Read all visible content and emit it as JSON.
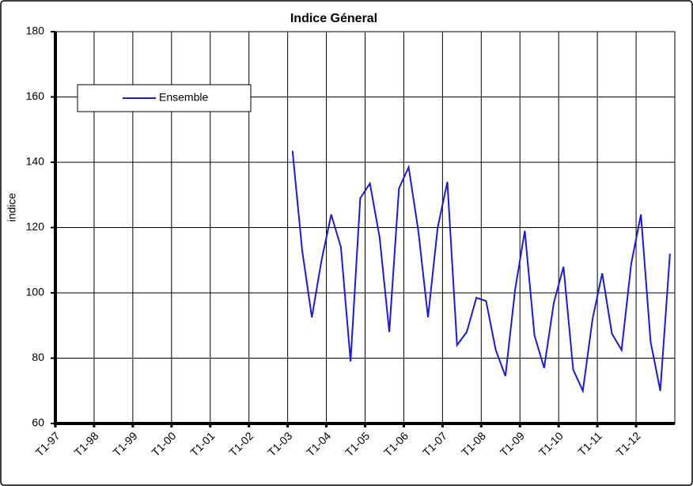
{
  "chart_data": {
    "type": "line",
    "title": "Indice Géneral",
    "y_label": "indice",
    "categories": [
      "T1-97",
      null,
      null,
      null,
      "T1-98",
      null,
      null,
      null,
      "T1-99",
      null,
      null,
      null,
      "T1-00",
      null,
      null,
      null,
      "T1-01",
      null,
      null,
      null,
      "T1-02",
      null,
      null,
      null,
      "T1-03",
      null,
      null,
      null,
      "T1-04",
      null,
      null,
      null,
      "T1-05",
      null,
      null,
      null,
      "T1-06",
      null,
      null,
      null,
      "T1-07",
      null,
      null,
      null,
      "T1-08",
      null,
      null,
      null,
      "T1-09",
      null,
      null,
      null,
      "T1-10",
      null,
      null,
      null,
      "T1-11",
      null,
      null,
      null,
      "T1-12",
      null,
      null,
      null
    ],
    "series": [
      {
        "name": "Ensemble",
        "color": "#1a1adc",
        "values": [
          null,
          null,
          null,
          null,
          null,
          null,
          null,
          null,
          null,
          null,
          null,
          null,
          null,
          null,
          null,
          null,
          null,
          null,
          null,
          null,
          null,
          null,
          null,
          null,
          143.5,
          113,
          92.5,
          110,
          124,
          114,
          79,
          129,
          133.5,
          117,
          88,
          132,
          138.5,
          119,
          92.5,
          120,
          134,
          84,
          88,
          98.5,
          97.5,
          82.5,
          74.5,
          101,
          119,
          87,
          77,
          97,
          108,
          76.5,
          70,
          92,
          106,
          87.5,
          82.5,
          109,
          124,
          85,
          70,
          112
        ]
      }
    ],
    "ylim": [
      60,
      180
    ],
    "yticks": [
      60,
      80,
      100,
      120,
      140,
      160,
      180
    ],
    "grid": true,
    "legend": "upper left"
  }
}
